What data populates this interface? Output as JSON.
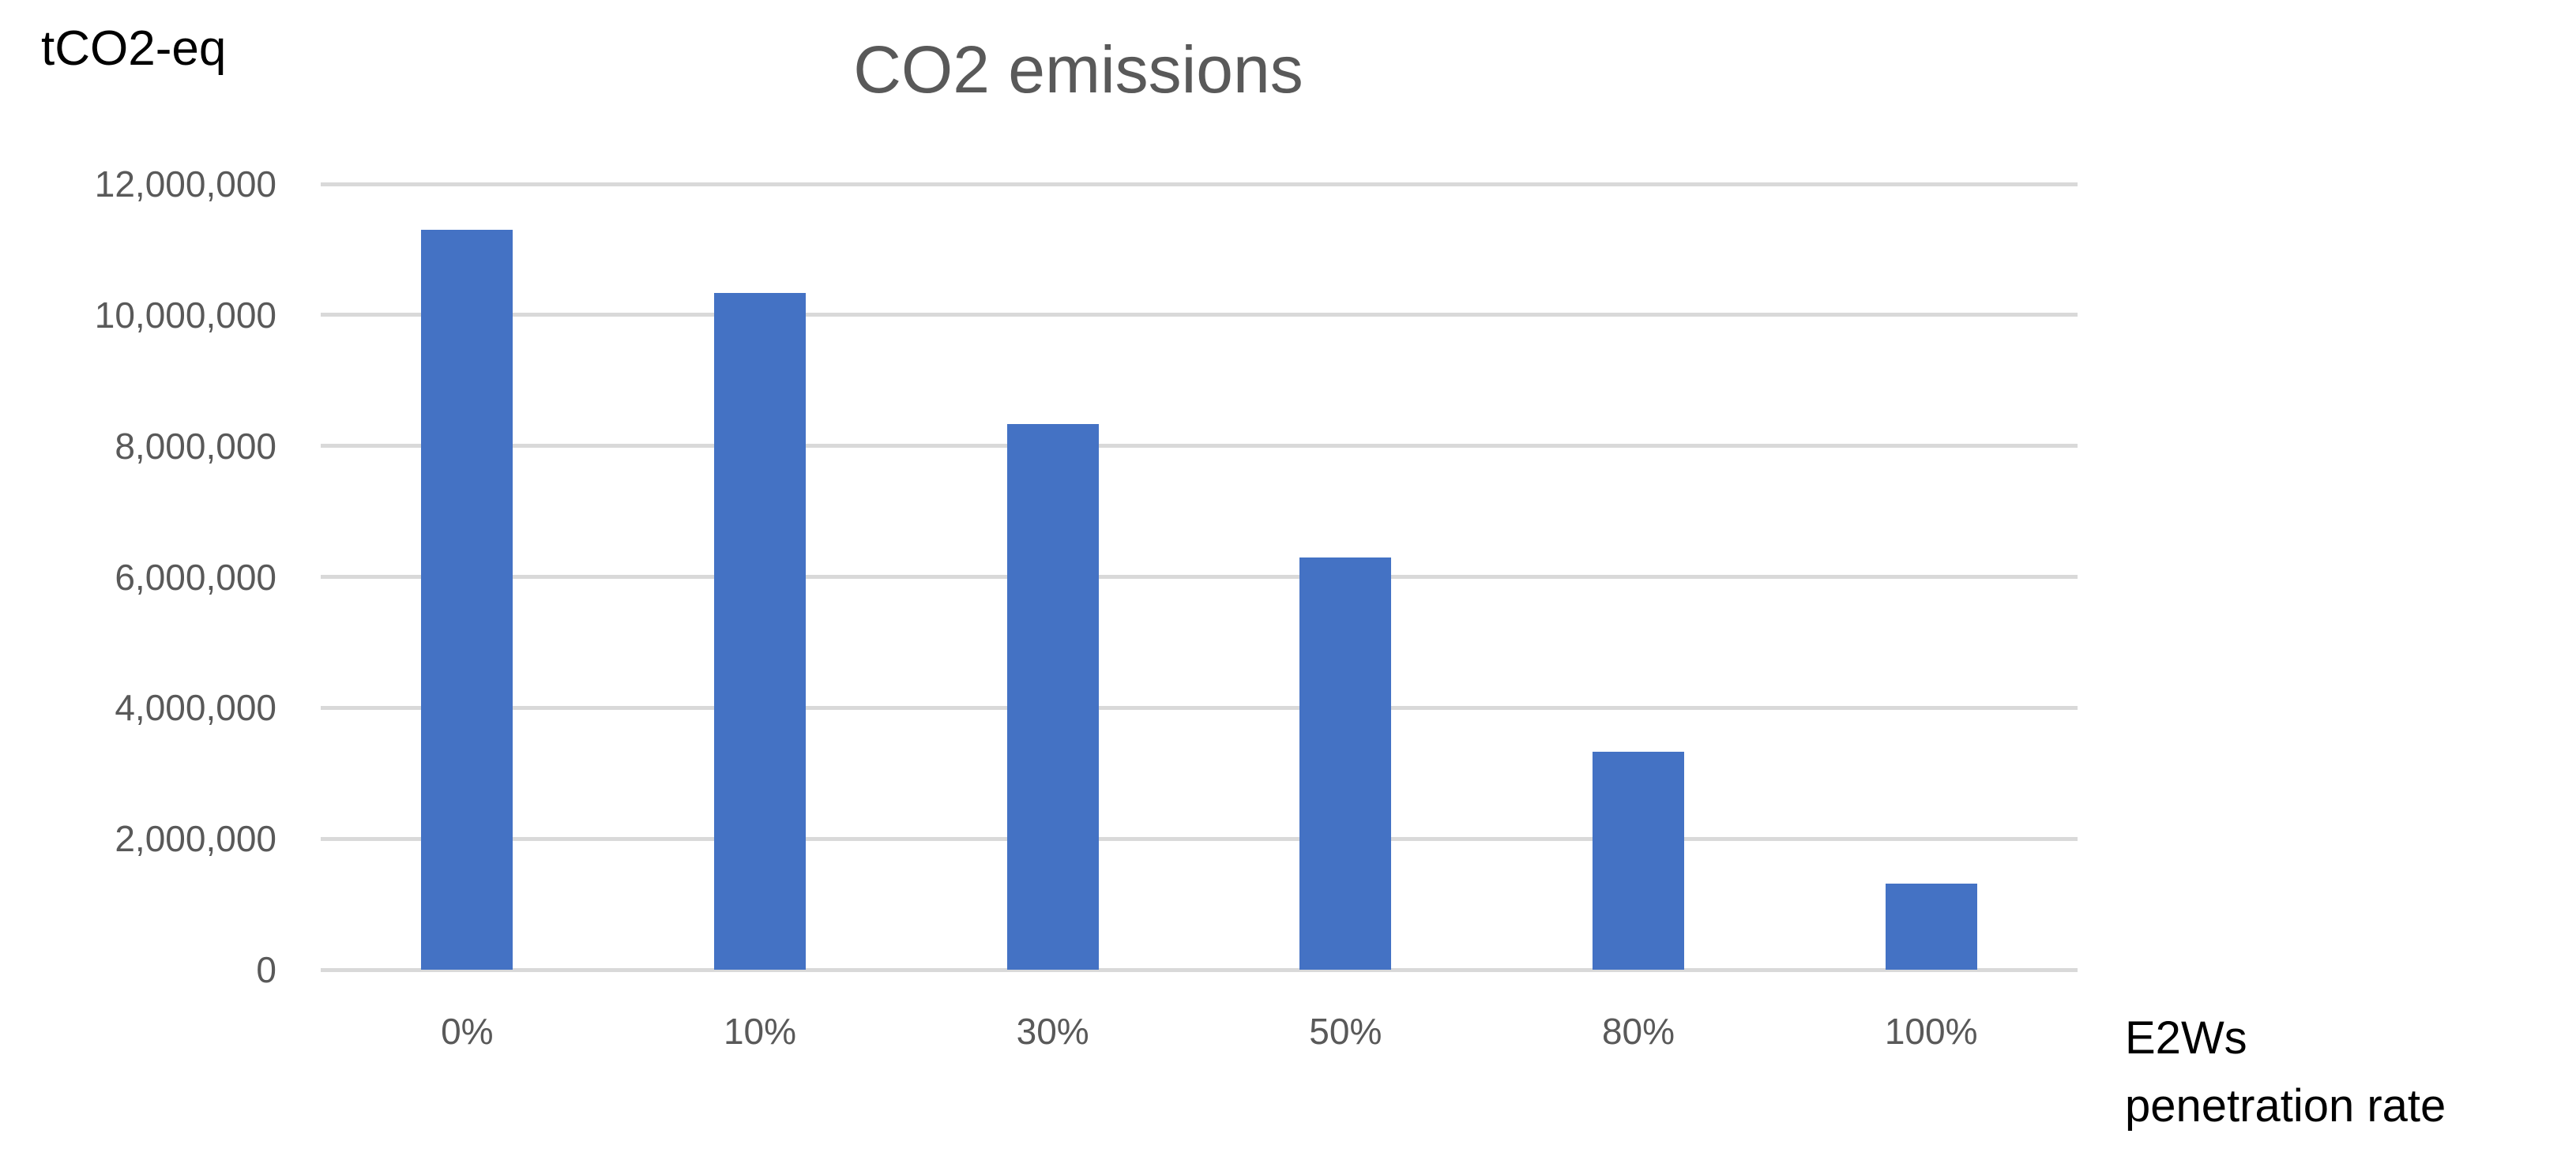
{
  "chart_data": {
    "type": "bar",
    "title": "CO2 emissions",
    "y_axis_unit": "tCO2-eq",
    "x_axis_title_lines": [
      "E2Ws",
      "penetration rate"
    ],
    "categories": [
      "0%",
      "10%",
      "30%",
      "50%",
      "80%",
      "100%"
    ],
    "values": [
      11300000,
      10340000,
      8330000,
      6300000,
      3330000,
      1310000
    ],
    "ylim": [
      0,
      12000000
    ],
    "y_tick_step": 2000000,
    "y_tick_labels": [
      "0",
      "2,000,000",
      "4,000,000",
      "6,000,000",
      "8,000,000",
      "10,000,000",
      "12,000,000"
    ],
    "grid": true,
    "legend": "none",
    "colors": {
      "bar": "#4472C4",
      "gridline": "#D9D9D9",
      "title": "#595959",
      "tick_label": "#595959",
      "axis_label": "#000000",
      "background": "#FFFFFF"
    }
  }
}
